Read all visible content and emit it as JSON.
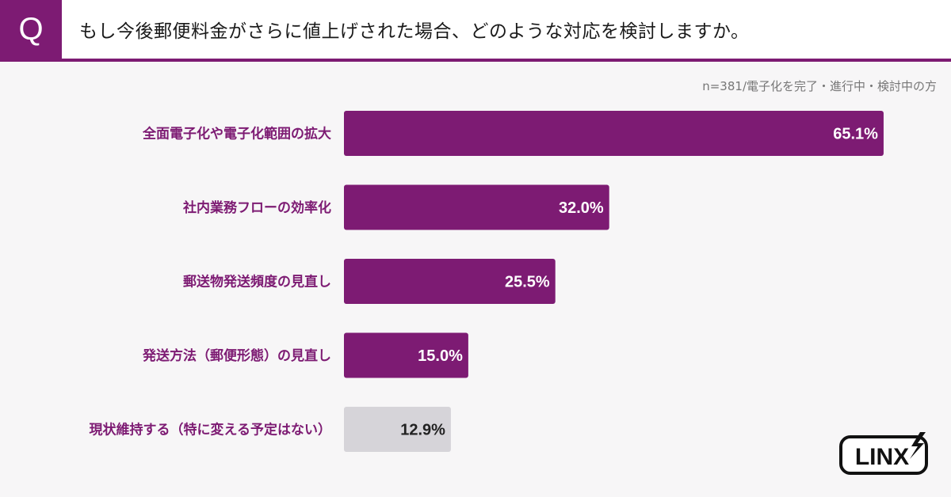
{
  "question": {
    "badge": "Q",
    "title": "もし今後郵便料金がさらに値上げされた場合、どのような対応を検討しますか。"
  },
  "note": "n=381/電子化を完了・進行中・検討中の方",
  "logo": {
    "text": "LINX",
    "icon": "lightning-bolt-icon"
  },
  "colors": {
    "accent": "#7d1b73",
    "label": "#7d1b73",
    "bar_highlight": "#7d1b73",
    "bar_muted": "#d6d4d9",
    "value_on_highlight": "#ffffff",
    "value_on_muted": "#222222"
  },
  "chart_data": {
    "type": "bar",
    "orientation": "horizontal",
    "categories": [
      "全面電子化や電子化範囲の拡大",
      "社内業務フローの効率化",
      "郵送物発送頻度の見直し",
      "発送方法（郵便形態）の見直し",
      "現状維持する（特に変える予定はない）"
    ],
    "values": [
      65.1,
      32.0,
      25.5,
      15.0,
      12.9
    ],
    "value_labels": [
      "65.1%",
      "32.0%",
      "25.5%",
      "15.0%",
      "12.9%"
    ],
    "highlight": [
      true,
      true,
      true,
      true,
      false
    ],
    "xlim": [
      0,
      100
    ],
    "grid": false,
    "legend": "none"
  }
}
